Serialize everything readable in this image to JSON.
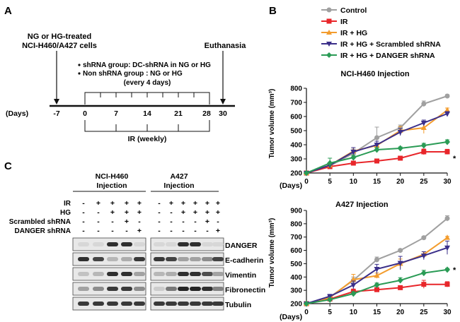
{
  "panel_labels": {
    "a": "A",
    "b": "B",
    "c": "C"
  },
  "timeline": {
    "cells_label_line1": "NG or HG-treated",
    "cells_label_line2": "NCI-H460/A427 cells",
    "euthanasia_label": "Euthanasia",
    "bullet1": "shRNA group: DC-shRNA in NG or HG",
    "bullet2": "Non shRNA group : NG or HG",
    "bullet3": "(every 4 days)",
    "axis_label": "(Days)",
    "day_ticks": [
      "-7",
      "0",
      "7",
      "14",
      "21",
      "28",
      "30"
    ],
    "ir_label": "IR (weekly)"
  },
  "blot": {
    "header_left_line1": "NCI-H460",
    "header_left_line2": "Injection",
    "header_right_line1": "A427",
    "header_right_line2": "Injection",
    "row_labels": [
      "IR",
      "HG",
      "Scrambled shRNA",
      "DANGER shRNA"
    ],
    "left_signs": [
      [
        "-",
        "+",
        "+",
        "+",
        "+"
      ],
      [
        "-",
        "-",
        "+",
        "+",
        "+"
      ],
      [
        "-",
        "-",
        "-",
        "+",
        "-"
      ],
      [
        "-",
        "-",
        "-",
        "-",
        "+"
      ]
    ],
    "right_signs": [
      [
        "-",
        "+",
        "+",
        "+",
        "+",
        "+"
      ],
      [
        "-",
        "-",
        "+",
        "+",
        "+",
        "+"
      ],
      [
        "-",
        "-",
        "-",
        "-",
        "+",
        "-"
      ],
      [
        "-",
        "-",
        "-",
        "-",
        "-",
        "+"
      ]
    ],
    "proteins": [
      "DANGER",
      "E-cadherin",
      "Vimentin",
      "Fibronectin",
      "Tubulin"
    ],
    "left_band_intensity": [
      [
        0.05,
        0.05,
        0.85,
        0.85,
        0.05
      ],
      [
        0.85,
        0.75,
        0.2,
        0.25,
        0.8
      ],
      [
        0.15,
        0.2,
        0.85,
        0.85,
        0.3
      ],
      [
        0.3,
        0.4,
        0.8,
        0.8,
        0.4
      ],
      [
        0.8,
        0.8,
        0.8,
        0.8,
        0.8
      ]
    ],
    "right_band_intensity": [
      [
        0.05,
        0.05,
        0.85,
        0.85,
        0.05,
        0.05
      ],
      [
        0.8,
        0.75,
        0.3,
        0.3,
        0.4,
        0.75
      ],
      [
        0.2,
        0.25,
        0.85,
        0.85,
        0.7,
        0.3
      ],
      [
        0.1,
        0.5,
        0.9,
        0.9,
        0.85,
        0.45
      ],
      [
        0.8,
        0.8,
        0.8,
        0.8,
        0.8,
        0.8
      ]
    ]
  },
  "chart_data": [
    {
      "type": "line",
      "title": "NCI-H460 Injection",
      "xlabel": "(Days)",
      "ylabel": "Tumor volume (mm³)",
      "x": [
        0,
        5,
        10,
        15,
        20,
        25,
        30
      ],
      "xlim": [
        0,
        30
      ],
      "ylim": [
        200,
        800
      ],
      "yticks": [
        200,
        300,
        400,
        500,
        600,
        700,
        800
      ],
      "annotation": "*",
      "legend": "top-left",
      "series": [
        {
          "name": "Control",
          "color": "#a0a0a0",
          "marker": "circle",
          "values": [
            200,
            250,
            340,
            450,
            520,
            690,
            745
          ],
          "errors": [
            0,
            10,
            30,
            75,
            20,
            20,
            10
          ]
        },
        {
          "name": "IR",
          "color": "#e8262a",
          "marker": "square",
          "values": [
            200,
            245,
            270,
            285,
            305,
            350,
            350
          ],
          "errors": [
            0,
            10,
            10,
            10,
            12,
            20,
            18
          ]
        },
        {
          "name": "IR + HG",
          "color": "#f39c2d",
          "marker": "triangle-up",
          "values": [
            200,
            255,
            355,
            395,
            500,
            520,
            645
          ],
          "errors": [
            0,
            15,
            25,
            30,
            30,
            40,
            15
          ]
        },
        {
          "name": "IR + HG + Scrambled shRNA",
          "color": "#3b2f8a",
          "marker": "triangle-down",
          "values": [
            200,
            255,
            350,
            400,
            490,
            555,
            620
          ],
          "errors": [
            0,
            15,
            30,
            25,
            25,
            20,
            15
          ]
        },
        {
          "name": "IR + HG + DANGER shRNA",
          "color": "#2a9b55",
          "marker": "diamond",
          "values": [
            200,
            270,
            310,
            365,
            375,
            395,
            420
          ],
          "errors": [
            0,
            35,
            15,
            15,
            10,
            15,
            15
          ]
        }
      ]
    },
    {
      "type": "line",
      "title": "A427 Injection",
      "xlabel": "(Days)",
      "ylabel": "Tumor volume (mm³)",
      "x": [
        0,
        5,
        10,
        15,
        20,
        25,
        30
      ],
      "xlim": [
        0,
        30
      ],
      "ylim": [
        200,
        900
      ],
      "yticks": [
        200,
        300,
        400,
        500,
        600,
        700,
        800,
        900
      ],
      "annotation": "*",
      "series": [
        {
          "name": "Control",
          "color": "#a0a0a0",
          "marker": "circle",
          "values": [
            200,
            250,
            375,
            530,
            600,
            695,
            840
          ],
          "errors": [
            0,
            10,
            25,
            20,
            10,
            10,
            20
          ]
        },
        {
          "name": "IR",
          "color": "#e8262a",
          "marker": "square",
          "values": [
            200,
            235,
            290,
            305,
            320,
            345,
            345
          ],
          "errors": [
            0,
            10,
            20,
            15,
            12,
            30,
            20
          ]
        },
        {
          "name": "IR + HG",
          "color": "#f39c2d",
          "marker": "triangle-up",
          "values": [
            200,
            245,
            380,
            410,
            500,
            570,
            695
          ],
          "errors": [
            0,
            15,
            40,
            20,
            35,
            20,
            10
          ]
        },
        {
          "name": "IR + HG + Scrambled shRNA",
          "color": "#3b2f8a",
          "marker": "triangle-down",
          "values": [
            200,
            255,
            340,
            460,
            505,
            560,
            620
          ],
          "errors": [
            0,
            15,
            30,
            35,
            50,
            30,
            50
          ]
        },
        {
          "name": "IR + HG + DANGER shRNA",
          "color": "#2a9b55",
          "marker": "diamond",
          "values": [
            200,
            230,
            275,
            340,
            375,
            430,
            455
          ],
          "errors": [
            0,
            10,
            15,
            15,
            20,
            20,
            10
          ]
        }
      ]
    }
  ]
}
